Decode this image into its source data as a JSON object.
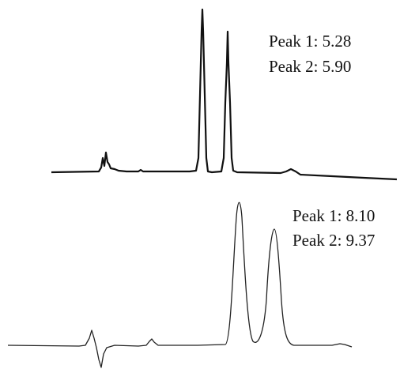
{
  "panels": [
    {
      "annotations": [
        "Peak 1: 5.28",
        "Peak 2: 5.90"
      ]
    },
    {
      "annotations": [
        "Peak 1: 8.10",
        "Peak 2: 9.37"
      ]
    }
  ]
}
